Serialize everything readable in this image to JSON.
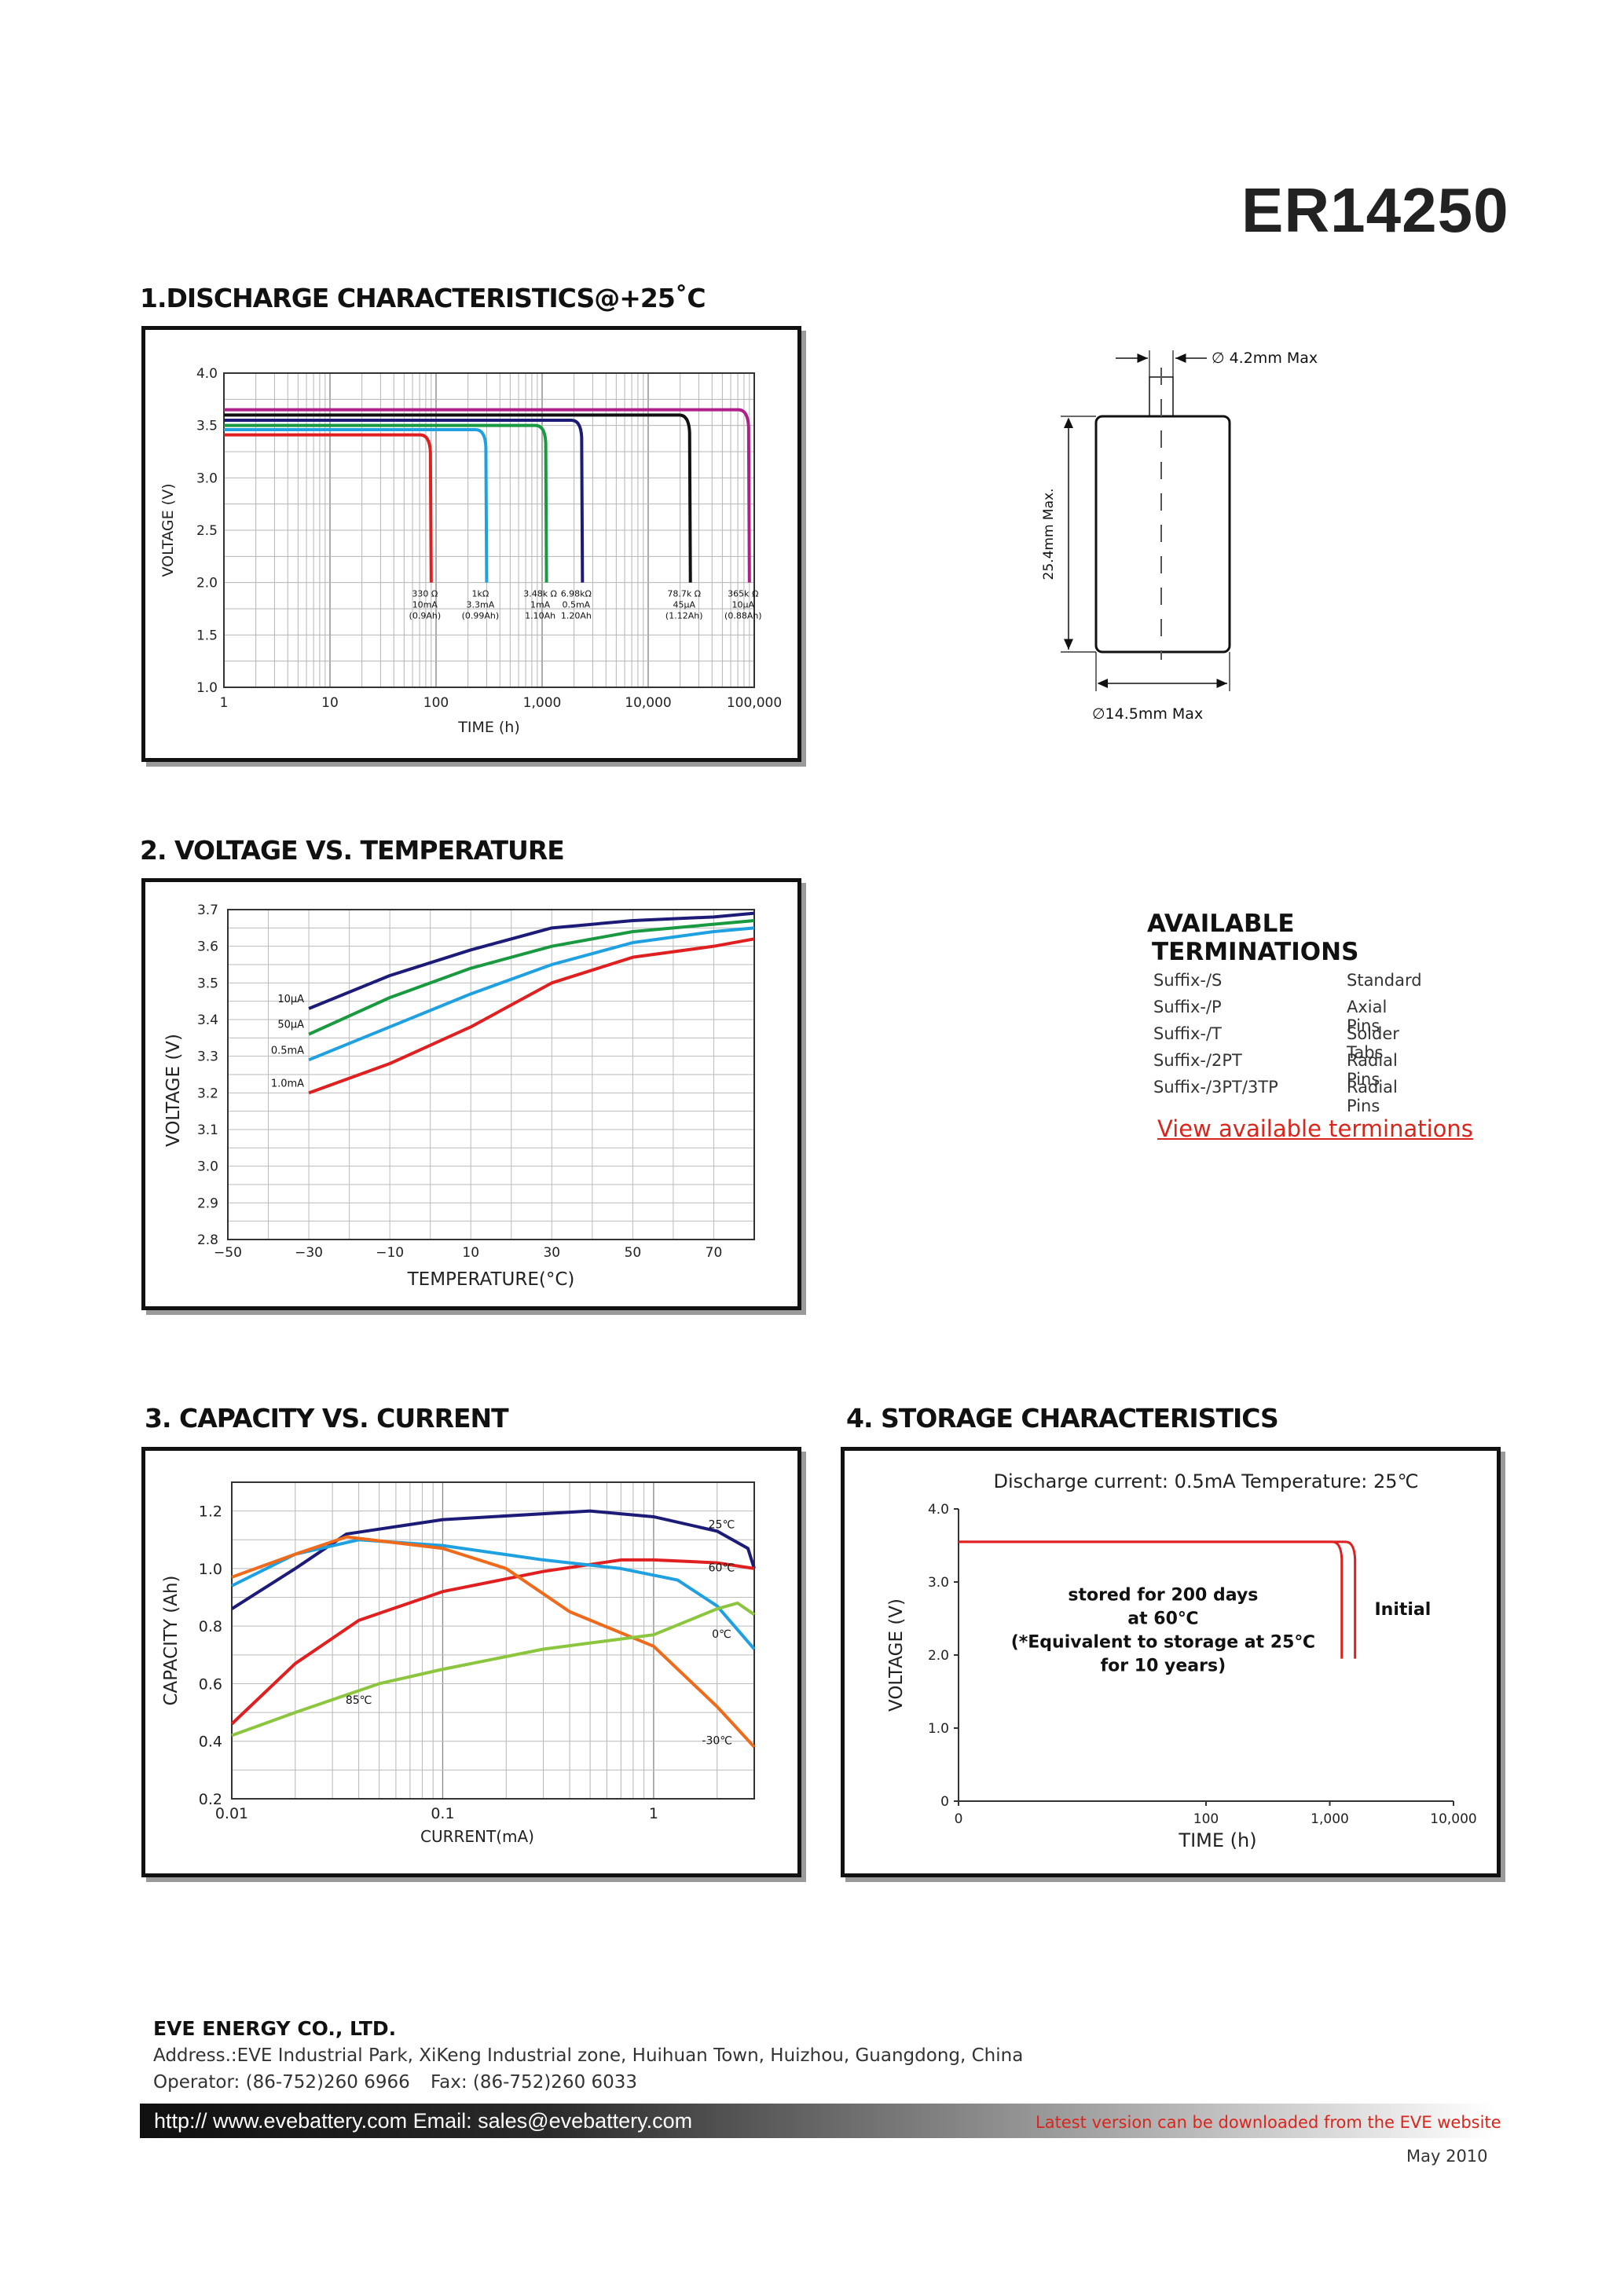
{
  "model": "ER14250",
  "sections": {
    "s1": "1.DISCHARGE CHARACTERISTICS@+25˚C",
    "s2": "2. VOLTAGE VS. TEMPERATURE",
    "s3": "3. CAPACITY VS. CURRENT",
    "s4": "4. STORAGE CHARACTERISTICS"
  },
  "dimensions": {
    "pin_diameter": "∅ 4.2mm Max",
    "height": "25.4mm Max.",
    "diameter": "∅14.5mm Max"
  },
  "terminations": {
    "heading_line1": "AVAILABLE",
    "heading_line2": "TERMINATIONS",
    "items": [
      {
        "suffix": "Suffix-/S",
        "type": "Standard"
      },
      {
        "suffix": "Suffix-/P",
        "type": "Axial Pins"
      },
      {
        "suffix": "Suffix-/T",
        "type": "Solder Tabs"
      },
      {
        "suffix": "Suffix-/2PT",
        "type": "Radial Pins"
      },
      {
        "suffix": "Suffix-/3PT/3TP",
        "type": "Radial Pins"
      }
    ],
    "link": "View available terminations"
  },
  "chart_data": [
    {
      "type": "line",
      "title": "",
      "xlabel": "TIME (h)",
      "ylabel": "VOLTAGE (V)",
      "x_scale": "log",
      "xlim": [
        1,
        100000
      ],
      "ylim": [
        1.0,
        4.0
      ],
      "x_ticks": [
        "1",
        "10",
        "100",
        "1,000",
        "10,000",
        "100,000"
      ],
      "y_ticks": [
        "1.0",
        "1.5",
        "2.0",
        "2.5",
        "3.0",
        "3.5",
        "4.0"
      ],
      "series": [
        {
          "name": "330 Ω 10mA (0.9Ah)",
          "color": "#e02020",
          "voltage": 3.41,
          "end_h": 90,
          "label": [
            "330 Ω",
            "10mA",
            "(0.9Ah)"
          ]
        },
        {
          "name": "1kΩ 3.3mA (0.99Ah)",
          "color": "#1fa0e0",
          "voltage": 3.46,
          "end_h": 300,
          "label": [
            "1kΩ",
            "3.3mA",
            "(0.99Ah)"
          ]
        },
        {
          "name": "3.48k Ω 1mA 1.10Ah",
          "color": "#1a9a40",
          "voltage": 3.5,
          "end_h": 1100,
          "label": [
            "3.48k Ω",
            "1mA",
            "1.10Ah"
          ]
        },
        {
          "name": "6.98kΩ 0.5mA 1.20Ah",
          "color": "#1c1c78",
          "voltage": 3.55,
          "end_h": 2400,
          "label": [
            "6.98kΩ",
            "0.5mA",
            "1.20Ah"
          ]
        },
        {
          "name": "78.7k Ω 45μA (1.12Ah)",
          "color": "#111111",
          "voltage": 3.6,
          "end_h": 25000,
          "label": [
            "78.7k Ω",
            "45μA",
            "(1.12Ah)"
          ]
        },
        {
          "name": "365k Ω 10μA (0.88Ah)",
          "color": "#b0208a",
          "voltage": 3.65,
          "end_h": 90000,
          "label": [
            "365k Ω",
            "10μA",
            "(0.88Ah)"
          ]
        }
      ]
    },
    {
      "type": "line",
      "title": "",
      "xlabel": "TEMPERATURE(°C)",
      "ylabel": "VOLTAGE (V)",
      "xlim": [
        -50,
        80
      ],
      "ylim": [
        2.8,
        3.7
      ],
      "x_ticks": [
        "-50",
        "-30",
        "-10",
        "10",
        "30",
        "50",
        "70"
      ],
      "y_ticks": [
        "2.8",
        "2.9",
        "3.0",
        "3.1",
        "3.2",
        "3.3",
        "3.4",
        "3.5",
        "3.6",
        "3.7"
      ],
      "x": [
        -30,
        -10,
        10,
        30,
        50,
        70,
        80
      ],
      "series": [
        {
          "name": "10μA",
          "color": "#1c1c78",
          "values": [
            3.43,
            3.52,
            3.59,
            3.65,
            3.67,
            3.68,
            3.69
          ]
        },
        {
          "name": "50μA",
          "color": "#1a9a40",
          "values": [
            3.36,
            3.46,
            3.54,
            3.6,
            3.64,
            3.66,
            3.67
          ]
        },
        {
          "name": "0.5mA",
          "color": "#1fa0e0",
          "values": [
            3.29,
            3.38,
            3.47,
            3.55,
            3.61,
            3.64,
            3.65
          ]
        },
        {
          "name": "1.0mA",
          "color": "#e02020",
          "values": [
            3.2,
            3.28,
            3.38,
            3.5,
            3.57,
            3.6,
            3.62
          ]
        }
      ]
    },
    {
      "type": "line",
      "title": "",
      "xlabel": "CURRENT(mA)",
      "ylabel": "CAPACITY (Ah)",
      "x_scale": "log",
      "xlim": [
        0.01,
        3
      ],
      "ylim": [
        0.2,
        1.3
      ],
      "x_ticks": [
        "0.01",
        "0.1",
        "1"
      ],
      "y_ticks": [
        "0.2",
        "0.4",
        "0.6",
        "0.8",
        "1.0",
        "1.2"
      ],
      "series": [
        {
          "name": "25℃",
          "color": "#1c1c78",
          "x": [
            0.01,
            0.02,
            0.035,
            0.1,
            0.5,
            1,
            2,
            2.8,
            3
          ],
          "values": [
            0.86,
            1.0,
            1.12,
            1.17,
            1.2,
            1.18,
            1.13,
            1.07,
            1.0
          ]
        },
        {
          "name": "60℃",
          "color": "#e02020",
          "x": [
            0.01,
            0.02,
            0.04,
            0.1,
            0.3,
            0.7,
            1,
            2,
            3
          ],
          "values": [
            0.46,
            0.67,
            0.82,
            0.92,
            0.99,
            1.03,
            1.03,
            1.02,
            1.0
          ]
        },
        {
          "name": "0℃",
          "color": "#1fa0e0",
          "x": [
            0.01,
            0.02,
            0.04,
            0.1,
            0.3,
            0.7,
            1.3,
            2,
            3
          ],
          "values": [
            0.94,
            1.05,
            1.1,
            1.08,
            1.03,
            1.0,
            0.96,
            0.87,
            0.72
          ]
        },
        {
          "name": "-30℃",
          "color": "#ef6a1a",
          "x": [
            0.01,
            0.02,
            0.035,
            0.1,
            0.2,
            0.4,
            1,
            2,
            3
          ],
          "values": [
            0.97,
            1.05,
            1.11,
            1.07,
            1.0,
            0.85,
            0.73,
            0.52,
            0.38
          ]
        },
        {
          "name": "85℃",
          "color": "#8cc63f",
          "x": [
            0.01,
            0.02,
            0.05,
            0.1,
            0.3,
            1,
            2,
            2.5,
            3
          ],
          "values": [
            0.42,
            0.5,
            0.6,
            0.65,
            0.72,
            0.77,
            0.86,
            0.88,
            0.84
          ]
        }
      ]
    },
    {
      "type": "line",
      "title": "Discharge current: 0.5mA  Temperature:  25℃",
      "xlabel": "TIME (h)",
      "ylabel": "VOLTAGE (V)",
      "x_scale": "log",
      "xlim": [
        1,
        10000
      ],
      "ylim": [
        0,
        4.0
      ],
      "x_ticks": [
        "0",
        "100",
        "1,000",
        "10,000"
      ],
      "y_ticks": [
        "0",
        "1.0",
        "2.0",
        "3.0",
        "4.0"
      ],
      "series": [
        {
          "name": "stored for 200 days at 60℃",
          "color": "#e02020",
          "voltage": 3.55,
          "end_h": 1250
        },
        {
          "name": "Initial",
          "color": "#e02020",
          "voltage": 3.55,
          "end_h": 1600
        }
      ],
      "annotation": [
        "stored for 200 days",
        "at 60℃",
        "(*Equivalent to storage at 25℃",
        "for 10 years)"
      ],
      "initial_label": "Initial"
    }
  ],
  "footer": {
    "company": "EVE ENERGY CO., LTD.",
    "address": "Address.:EVE Industrial Park, XiKeng Industrial zone, Huihuan Town, Huizhou, Guangdong, China",
    "operator": "Operator: (86-752)260 6966",
    "fax": "Fax: (86-752)260 6033",
    "web": "http:// www.evebattery.com  Email: sales@evebattery.com",
    "latest": "Latest version can be downloaded from the EVE website",
    "date": "May 2010"
  }
}
